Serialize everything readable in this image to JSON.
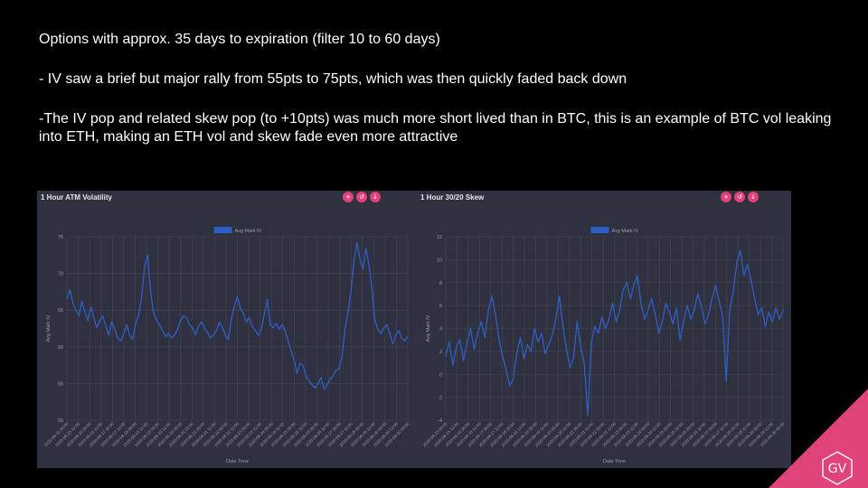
{
  "slide": {
    "line1": "Options with approx. 35 days to expiration (filter 10 to 60 days)",
    "line2": "- IV saw a brief but major rally from 55pts to 75pts, which was then quickly faded back down",
    "line3": "-The IV pop and related skew pop (to +10pts) was much more short lived than in BTC, this is an example of BTC vol leaking into ETH, making an ETH vol and skew fade even more attractive"
  },
  "logo": {
    "text": "GV",
    "color": "#e0427a"
  },
  "colors": {
    "line": "#2f5fc4",
    "panel": "#2f3140",
    "buttons": "#e0427a"
  },
  "chart_data": [
    {
      "type": "line",
      "title": "1 Hour ATM Volatility",
      "xlabel": "Date Time",
      "ylabel": "Avg Mark IV",
      "legend": "top-center",
      "grid": true,
      "ylim": [
        50,
        75
      ],
      "yticks": [
        50,
        55,
        60,
        65,
        70,
        75
      ],
      "xticks": [
        "2020-08-15 00:00",
        "2020-08-15 12:00",
        "2020-08-16 00:00",
        "2020-08-16 12:00",
        "2020-08-17 00:00",
        "2020-08-17 12:00",
        "2020-08-18 00:00",
        "2020-08-18 12:00",
        "2020-08-19 00:00",
        "2020-08-19 12:00",
        "2020-08-20 00:00",
        "2020-08-20 12:00",
        "2020-08-21 00:00",
        "2020-08-21 12:00",
        "2020-08-22 00:00",
        "2020-08-22 12:00",
        "2020-08-23 00:00",
        "2020-08-23 12:00",
        "2020-08-24 00:00",
        "2020-08-24 12:00",
        "2020-08-25 00:00",
        "2020-08-25 12:00",
        "2020-08-26 00:00",
        "2020-08-26 12:00",
        "2020-08-27 00:00",
        "2020-08-27 12:00",
        "2020-08-28 00:00",
        "2020-08-28 12:00",
        "2020-08-29 00:00",
        "2020-08-29 12:00",
        "2020-08-30 00:00"
      ],
      "series": [
        {
          "name": "Avg Mark IV",
          "values": [
            66.5,
            67.8,
            66.0,
            65.0,
            64.2,
            66.2,
            64.8,
            63.6,
            65.4,
            64.0,
            62.6,
            63.6,
            64.2,
            62.8,
            61.6,
            63.4,
            62.4,
            61.2,
            60.8,
            61.8,
            63.0,
            61.6,
            61.0,
            63.2,
            64.4,
            66.8,
            71.0,
            72.5,
            67.4,
            64.6,
            63.6,
            63.0,
            62.2,
            61.4,
            61.8,
            61.2,
            61.6,
            62.4,
            63.6,
            64.2,
            64.0,
            63.0,
            62.6,
            61.6,
            62.8,
            63.4,
            62.6,
            62.0,
            61.2,
            61.6,
            62.2,
            63.4,
            62.6,
            61.6,
            61.0,
            63.8,
            65.6,
            66.8,
            65.2,
            64.6,
            63.4,
            64.0,
            62.8,
            62.2,
            61.6,
            62.4,
            64.4,
            66.4,
            63.0,
            62.6,
            63.2,
            62.4,
            63.0,
            62.2,
            60.8,
            59.4,
            58.2,
            56.4,
            57.8,
            57.4,
            56.0,
            55.4,
            54.8,
            54.4,
            55.0,
            55.8,
            54.2,
            54.8,
            55.6,
            56.0,
            56.8,
            57.0,
            58.6,
            62.4,
            64.8,
            67.6,
            71.8,
            74.2,
            72.0,
            70.6,
            73.4,
            71.2,
            68.0,
            63.6,
            62.4,
            61.8,
            62.6,
            63.0,
            61.8,
            60.4,
            61.6,
            62.2,
            61.2,
            60.8,
            61.4
          ]
        }
      ]
    },
    {
      "type": "line",
      "title": "1 Hour 30/20 Skew",
      "xlabel": "Date Time",
      "ylabel": "Avg Mark IV",
      "legend": "top-center",
      "grid": true,
      "ylim": [
        -4,
        12
      ],
      "yticks": [
        -4,
        -2,
        0,
        2,
        4,
        6,
        8,
        10,
        12
      ],
      "xticks": [
        "2020-08-15 00:00",
        "2020-08-15 12:00",
        "2020-08-16 00:00",
        "2020-08-16 12:00",
        "2020-08-17 00:00",
        "2020-08-17 12:00",
        "2020-08-18 00:00",
        "2020-08-18 12:00",
        "2020-08-19 00:00",
        "2020-08-19 12:00",
        "2020-08-20 00:00",
        "2020-08-20 12:00",
        "2020-08-21 00:00",
        "2020-08-21 12:00",
        "2020-08-22 00:00",
        "2020-08-22 12:00",
        "2020-08-23 00:00",
        "2020-08-23 12:00",
        "2020-08-24 00:00",
        "2020-08-24 12:00",
        "2020-08-25 00:00",
        "2020-08-25 12:00",
        "2020-08-26 00:00",
        "2020-08-26 12:00",
        "2020-08-27 00:00",
        "2020-08-27 12:00",
        "2020-08-28 00:00",
        "2020-08-28 12:00",
        "2020-08-29 00:00",
        "2020-08-29 12:00",
        "2020-08-30 00:00"
      ],
      "series": [
        {
          "name": "Avg Mark IV",
          "values": [
            1.6,
            2.8,
            0.8,
            2.4,
            3.0,
            1.2,
            2.8,
            4.0,
            2.2,
            3.6,
            4.6,
            3.2,
            5.6,
            6.8,
            5.2,
            3.0,
            1.6,
            0.4,
            -1.0,
            -0.4,
            1.8,
            3.2,
            1.4,
            2.6,
            2.0,
            4.0,
            2.8,
            3.6,
            1.8,
            2.6,
            3.4,
            4.8,
            6.8,
            4.2,
            2.2,
            0.6,
            1.4,
            4.6,
            2.4,
            1.0,
            -3.6,
            2.8,
            4.2,
            3.6,
            5.0,
            4.0,
            4.8,
            6.2,
            4.6,
            5.6,
            7.4,
            8.0,
            6.6,
            7.8,
            8.6,
            6.2,
            4.8,
            5.6,
            6.6,
            5.2,
            3.6,
            4.6,
            6.2,
            5.4,
            4.4,
            5.8,
            3.0,
            4.6,
            6.0,
            4.8,
            5.6,
            7.0,
            6.0,
            4.4,
            5.2,
            6.6,
            7.8,
            6.4,
            5.0,
            -0.6,
            5.6,
            7.2,
            9.8,
            10.8,
            8.6,
            9.6,
            8.2,
            6.6,
            5.2,
            5.8,
            4.2,
            5.4,
            4.6,
            5.8,
            4.8,
            5.6
          ]
        }
      ]
    }
  ]
}
